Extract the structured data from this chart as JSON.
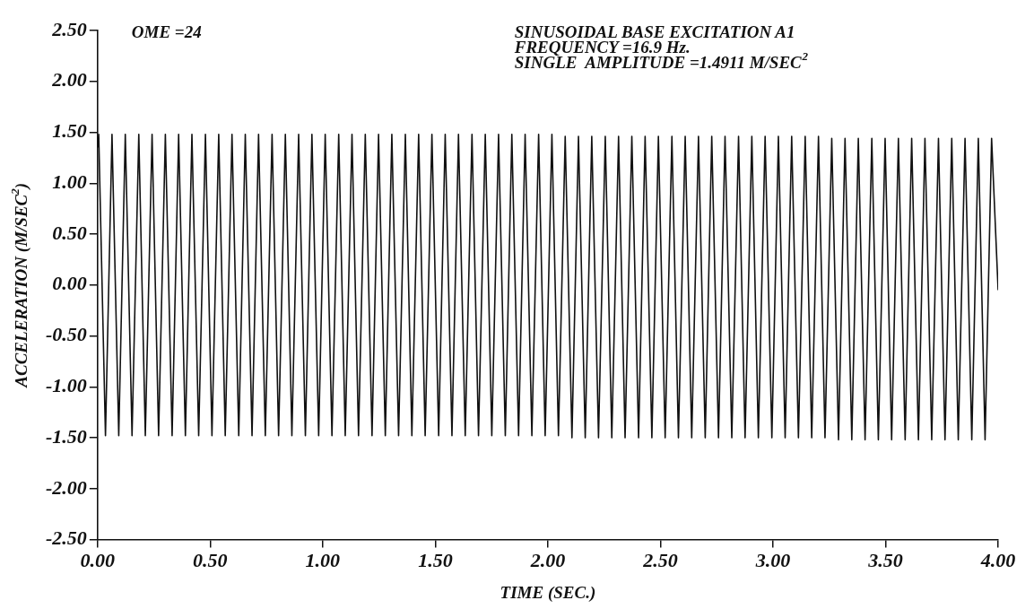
{
  "chart_data": {
    "type": "line",
    "xlabel": "TIME (SEC.)",
    "ylabel": "ACCELERATION (M/SEC$^{2}$)",
    "annotations": [
      "OME =24",
      "SINUSOIDAL BASE EXCITATION A1",
      "FREQUENCY =16.9 Hz.",
      "SINGLE  AMPLITUDE =1.4911 M/SEC$^{2}$"
    ],
    "series": [
      {
        "color": "#111111",
        "x": [
          0,
          0.005,
          0.035,
          0.064,
          0.094,
          0.123,
          0.153,
          0.183,
          0.212,
          0.242,
          0.271,
          0.301,
          0.331,
          0.36,
          0.39,
          0.419,
          0.449,
          0.479,
          0.508,
          0.538,
          0.567,
          0.597,
          0.627,
          0.656,
          0.686,
          0.715,
          0.745,
          0.775,
          0.804,
          0.834,
          0.863,
          0.893,
          0.923,
          0.952,
          0.982,
          1.011,
          1.041,
          1.071,
          1.1,
          1.13,
          1.159,
          1.189,
          1.219,
          1.248,
          1.278,
          1.307,
          1.337,
          1.367,
          1.396,
          1.426,
          1.455,
          1.485,
          1.515,
          1.544,
          1.574,
          1.603,
          1.633,
          1.663,
          1.692,
          1.722,
          1.751,
          1.781,
          1.811,
          1.84,
          1.87,
          1.899,
          1.929,
          1.959,
          1.988,
          2.018,
          2.047,
          2.077,
          2.107,
          2.136,
          2.166,
          2.195,
          2.225,
          2.255,
          2.284,
          2.314,
          2.343,
          2.373,
          2.403,
          2.432,
          2.462,
          2.491,
          2.521,
          2.551,
          2.58,
          2.61,
          2.639,
          2.669,
          2.699,
          2.728,
          2.758,
          2.787,
          2.817,
          2.847,
          2.876,
          2.906,
          2.935,
          2.965,
          2.995,
          3.024,
          3.054,
          3.083,
          3.113,
          3.143,
          3.172,
          3.202,
          3.231,
          3.261,
          3.291,
          3.32,
          3.35,
          3.379,
          3.409,
          3.439,
          3.468,
          3.498,
          3.527,
          3.557,
          3.587,
          3.616,
          3.646,
          3.675,
          3.705,
          3.735,
          3.764,
          3.794,
          3.823,
          3.853,
          3.883,
          3.912,
          3.942,
          3.971,
          4.0
        ],
        "values": [
          1.35,
          1.48,
          -1.48,
          1.48,
          -1.48,
          1.48,
          -1.48,
          1.48,
          -1.48,
          1.48,
          -1.48,
          1.48,
          -1.48,
          1.48,
          -1.48,
          1.48,
          -1.48,
          1.48,
          -1.48,
          1.48,
          -1.48,
          1.48,
          -1.48,
          1.48,
          -1.48,
          1.48,
          -1.48,
          1.48,
          -1.48,
          1.48,
          -1.48,
          1.48,
          -1.48,
          1.48,
          -1.48,
          1.48,
          -1.48,
          1.48,
          -1.48,
          1.48,
          -1.48,
          1.48,
          -1.48,
          1.48,
          -1.48,
          1.48,
          -1.48,
          1.48,
          -1.48,
          1.48,
          -1.48,
          1.48,
          -1.48,
          1.48,
          -1.48,
          1.48,
          -1.48,
          1.48,
          -1.48,
          1.48,
          -1.48,
          1.48,
          -1.48,
          1.48,
          -1.48,
          1.48,
          -1.48,
          1.48,
          -1.48,
          1.48,
          -1.48,
          1.46,
          -1.5,
          1.46,
          -1.5,
          1.46,
          -1.5,
          1.46,
          -1.5,
          1.46,
          -1.5,
          1.46,
          -1.5,
          1.46,
          -1.5,
          1.46,
          -1.5,
          1.46,
          -1.5,
          1.46,
          -1.5,
          1.46,
          -1.5,
          1.46,
          -1.5,
          1.46,
          -1.5,
          1.46,
          -1.5,
          1.46,
          -1.5,
          1.46,
          -1.5,
          1.46,
          -1.5,
          1.46,
          -1.5,
          1.46,
          -1.5,
          1.46,
          -1.5,
          1.44,
          -1.52,
          1.44,
          -1.52,
          1.44,
          -1.52,
          1.44,
          -1.52,
          1.44,
          -1.52,
          1.44,
          -1.52,
          1.44,
          -1.52,
          1.44,
          -1.52,
          1.44,
          -1.52,
          1.44,
          -1.52,
          1.44,
          -1.52,
          1.44,
          -1.52,
          1.44,
          -0.05
        ]
      }
    ],
    "xlim": [
      0,
      4
    ],
    "xticks": [
      {
        "value": 0,
        "label": "0.00"
      },
      {
        "value": 0.5,
        "label": "0.50"
      },
      {
        "value": 1,
        "label": "1.00"
      },
      {
        "value": 1.5,
        "label": "1.50"
      },
      {
        "value": 2,
        "label": "2.00"
      },
      {
        "value": 2.5,
        "label": "2.50"
      },
      {
        "value": 3,
        "label": "3.00"
      },
      {
        "value": 3.5,
        "label": "3.50"
      },
      {
        "value": 4,
        "label": "4.00"
      }
    ],
    "ylim": [
      -2.5,
      2.5
    ],
    "yticks": [
      {
        "value": -2.5,
        "label": "-2.50"
      },
      {
        "value": -2,
        "label": "-2.00"
      },
      {
        "value": -1.5,
        "label": "-1.50"
      },
      {
        "value": -1,
        "label": "-1.00"
      },
      {
        "value": -0.5,
        "label": "-0.50"
      },
      {
        "value": 0,
        "label": "0.00"
      },
      {
        "value": 0.5,
        "label": "0.50"
      },
      {
        "value": 1,
        "label": "1.00"
      },
      {
        "value": 1.5,
        "label": "1.50"
      },
      {
        "value": 2,
        "label": "2.00"
      },
      {
        "value": 2.5,
        "label": "2.50"
      }
    ],
    "grid": false,
    "legend": false,
    "marker": "none",
    "line_style": "solid"
  }
}
